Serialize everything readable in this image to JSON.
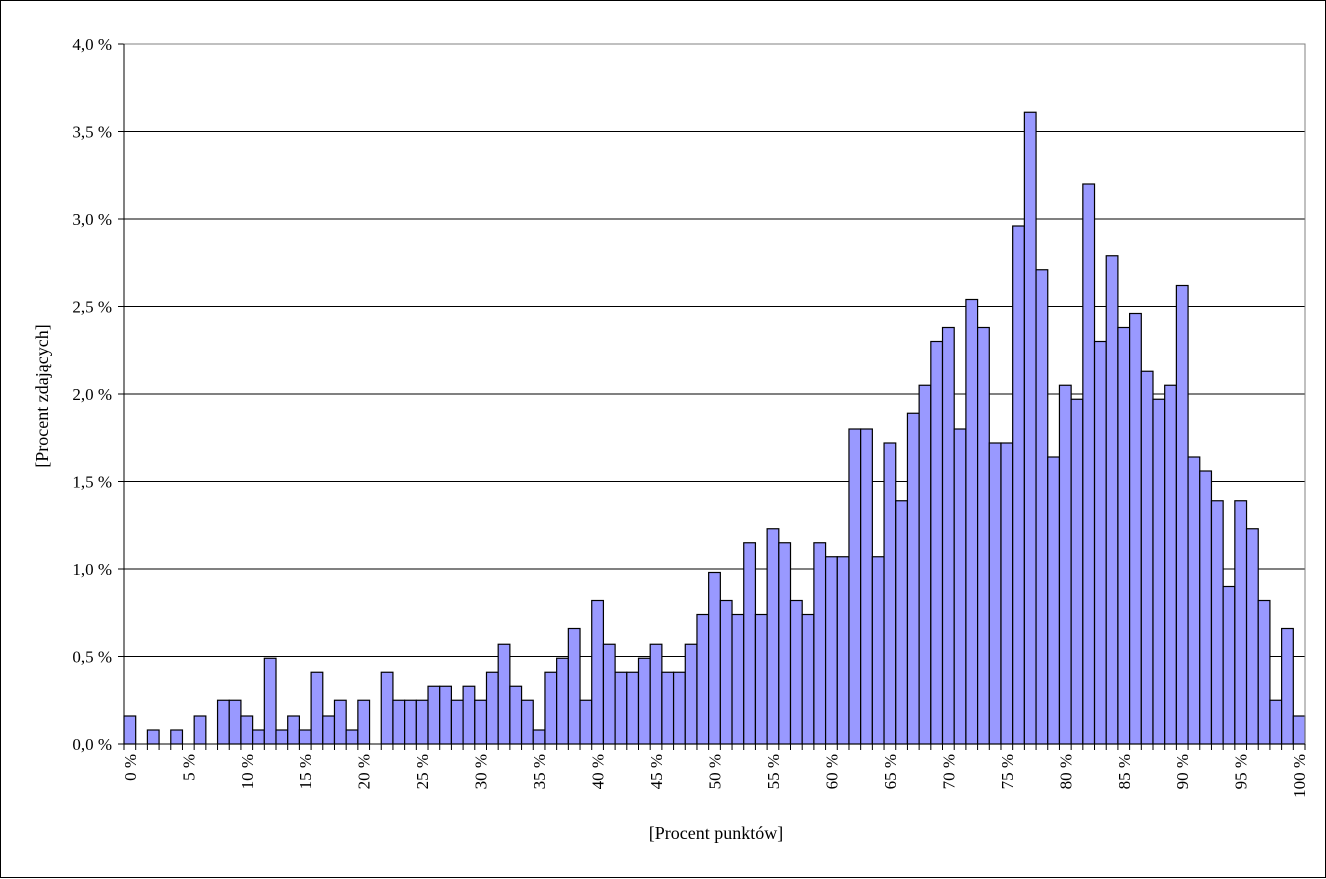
{
  "chart_data": {
    "type": "bar",
    "title": "",
    "xlabel": "[Procent punktów]",
    "ylabel": "[Procent zdających]",
    "ylim": [
      0,
      4.0
    ],
    "grid": true,
    "legend": "none",
    "bar_color": "#9999ff",
    "bar_edge_color": "#000000",
    "y_ticks": [
      0,
      0.5,
      1.0,
      1.5,
      2.0,
      2.5,
      3.0,
      3.5,
      4.0
    ],
    "y_tick_labels": [
      "0,0 %",
      "0,5 %",
      "1,0 %",
      "1,5 %",
      "2,0 %",
      "2,5 %",
      "3,0 %",
      "3,5 %",
      "4,0 %"
    ],
    "x_tick_labels": [
      "0 %",
      "5 %",
      "10 %",
      "15 %",
      "20 %",
      "25 %",
      "30 %",
      "35 %",
      "40 %",
      "45 %",
      "50 %",
      "55 %",
      "60 %",
      "65 %",
      "70 %",
      "75 %",
      "80 %",
      "85 %",
      "90 %",
      "95 %",
      "100 %"
    ],
    "values": [
      0.16,
      0,
      0.08,
      0,
      0.08,
      0,
      0.16,
      0,
      0.25,
      0.25,
      0.16,
      0.08,
      0.49,
      0.08,
      0.16,
      0.08,
      0.41,
      0.16,
      0.25,
      0.08,
      0.25,
      0,
      0.41,
      0.25,
      0.25,
      0.25,
      0.33,
      0.33,
      0.25,
      0.33,
      0.25,
      0.41,
      0.57,
      0.33,
      0.25,
      0.08,
      0.41,
      0.49,
      0.66,
      0.25,
      0.82,
      0.57,
      0.41,
      0.41,
      0.49,
      0.57,
      0.41,
      0.41,
      0.57,
      0.74,
      0.98,
      0.82,
      0.74,
      1.15,
      0.74,
      1.23,
      1.15,
      0.82,
      0.74,
      1.15,
      1.07,
      1.07,
      1.8,
      1.8,
      1.07,
      1.72,
      1.39,
      1.89,
      2.05,
      2.3,
      2.38,
      1.8,
      2.54,
      2.38,
      1.72,
      1.72,
      2.96,
      3.61,
      2.71,
      1.64,
      2.05,
      1.97,
      3.2,
      2.3,
      2.79,
      2.38,
      2.46,
      2.13,
      1.97,
      2.05,
      2.62,
      1.64,
      1.56,
      1.39,
      0.9,
      1.39,
      1.23,
      0.82,
      0.25,
      0.66,
      0.16
    ]
  }
}
